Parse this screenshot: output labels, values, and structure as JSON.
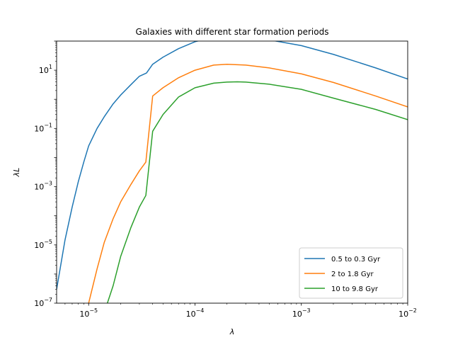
{
  "chart_data": {
    "type": "line",
    "title": "Galaxies with different star formation periods",
    "xlabel": "λ",
    "ylabel": "λL",
    "xscale": "log",
    "yscale": "log",
    "xlim": [
      5e-06,
      0.01
    ],
    "ylim": [
      1e-07,
      100
    ],
    "grid": false,
    "legend_position": "lower-right",
    "x_ticks": [
      {
        "value": 1e-05,
        "base": "10",
        "exp": "−5"
      },
      {
        "value": 0.0001,
        "base": "10",
        "exp": "−4"
      },
      {
        "value": 0.001,
        "base": "10",
        "exp": "−3"
      },
      {
        "value": 0.01,
        "base": "10",
        "exp": "−2"
      }
    ],
    "y_ticks": [
      {
        "value": 1e-07,
        "base": "10",
        "exp": "−7"
      },
      {
        "value": 1e-05,
        "base": "10",
        "exp": "−5"
      },
      {
        "value": 0.001,
        "base": "10",
        "exp": "−3"
      },
      {
        "value": 0.1,
        "base": "10",
        "exp": "−1"
      },
      {
        "value": 10,
        "base": "10",
        "exp": "1"
      }
    ],
    "series": [
      {
        "name": "0.5 to 0.3 Gyr",
        "color": "#1f77b4",
        "x": [
          5e-06,
          6e-06,
          7e-06,
          8e-06,
          9e-06,
          1e-05,
          1.2e-05,
          1.4e-05,
          1.7e-05,
          2e-05,
          2.5e-05,
          3e-05,
          3.5e-05,
          4e-05,
          5e-05,
          7e-05,
          0.0001,
          0.00015,
          0.0002,
          0.0003,
          0.0005,
          0.001,
          0.002,
          0.005,
          0.01
        ],
        "y": [
          3e-07,
          1.5e-05,
          0.0002,
          0.0015,
          0.007,
          0.025,
          0.1,
          0.25,
          0.7,
          1.4,
          3.2,
          6.2,
          8,
          16,
          28,
          55,
          95,
          140,
          150,
          140,
          110,
          70,
          35,
          12,
          5
        ]
      },
      {
        "name": "2 to 1.8 Gyr",
        "color": "#ff7f0e",
        "x": [
          1e-05,
          1.2e-05,
          1.4e-05,
          1.7e-05,
          2e-05,
          2.5e-05,
          3e-05,
          3.45e-05,
          4e-05,
          5e-05,
          7e-05,
          0.0001,
          0.00015,
          0.0002,
          0.0003,
          0.0005,
          0.001,
          0.002,
          0.005,
          0.01
        ],
        "y": [
          1e-07,
          1.5e-06,
          1.2e-05,
          8e-05,
          0.0003,
          0.0012,
          0.0035,
          0.007,
          1.3,
          2.5,
          5.5,
          10,
          15,
          16,
          15,
          12,
          7.5,
          3.8,
          1.3,
          0.55
        ]
      },
      {
        "name": "10 to 9.8 Gyr",
        "color": "#2ca02c",
        "x": [
          1.5e-05,
          1.7e-05,
          2e-05,
          2.5e-05,
          3e-05,
          3.45e-05,
          4e-05,
          5e-05,
          7e-05,
          0.0001,
          0.00015,
          0.0002,
          0.00025,
          0.0003,
          0.0005,
          0.001,
          0.002,
          0.005,
          0.01
        ],
        "y": [
          1e-07,
          4e-07,
          4e-06,
          4e-05,
          0.0002,
          0.0005,
          0.08,
          0.3,
          1.2,
          2.5,
          3.6,
          3.9,
          4,
          3.9,
          3.3,
          2.2,
          1.1,
          0.45,
          0.2
        ]
      }
    ]
  }
}
